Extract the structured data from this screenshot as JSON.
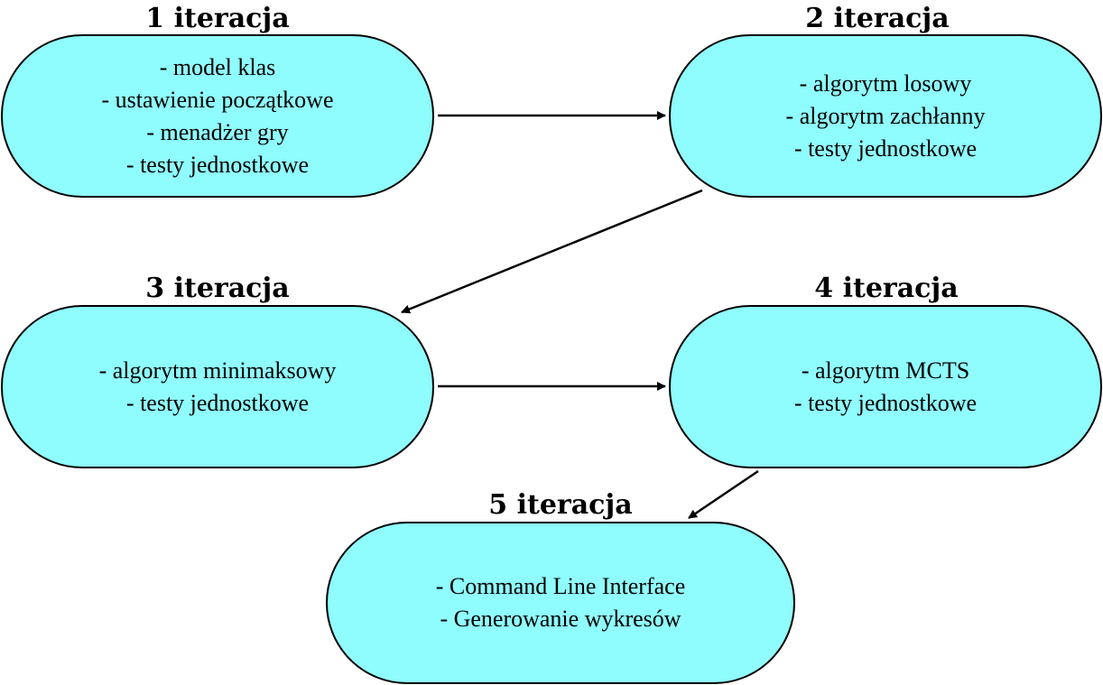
{
  "diagram": {
    "fill_color": "#8ffcfd",
    "stroke_color": "#000000",
    "nodes": [
      {
        "title": "1 iteracja",
        "items": [
          "- model klas",
          "- ustawienie początkowe",
          "- menadżer gry",
          "- testy jednostkowe"
        ]
      },
      {
        "title": "2 iteracja",
        "items": [
          "- algorytm losowy",
          "- algorytm zachłanny",
          "- testy jednostkowe"
        ]
      },
      {
        "title": "3 iteracja",
        "items": [
          "- algorytm minimaksowy",
          "- testy jednostkowe"
        ]
      },
      {
        "title": "4 iteracja",
        "items": [
          "- algorytm MCTS",
          "- testy jednostkowe"
        ]
      },
      {
        "title": "5 iteracja",
        "items": [
          "- Command Line Interface",
          "- Generowanie wykresów"
        ]
      }
    ],
    "edges": [
      {
        "from": 1,
        "to": 2
      },
      {
        "from": 2,
        "to": 3
      },
      {
        "from": 3,
        "to": 4
      },
      {
        "from": 4,
        "to": 5
      }
    ]
  }
}
